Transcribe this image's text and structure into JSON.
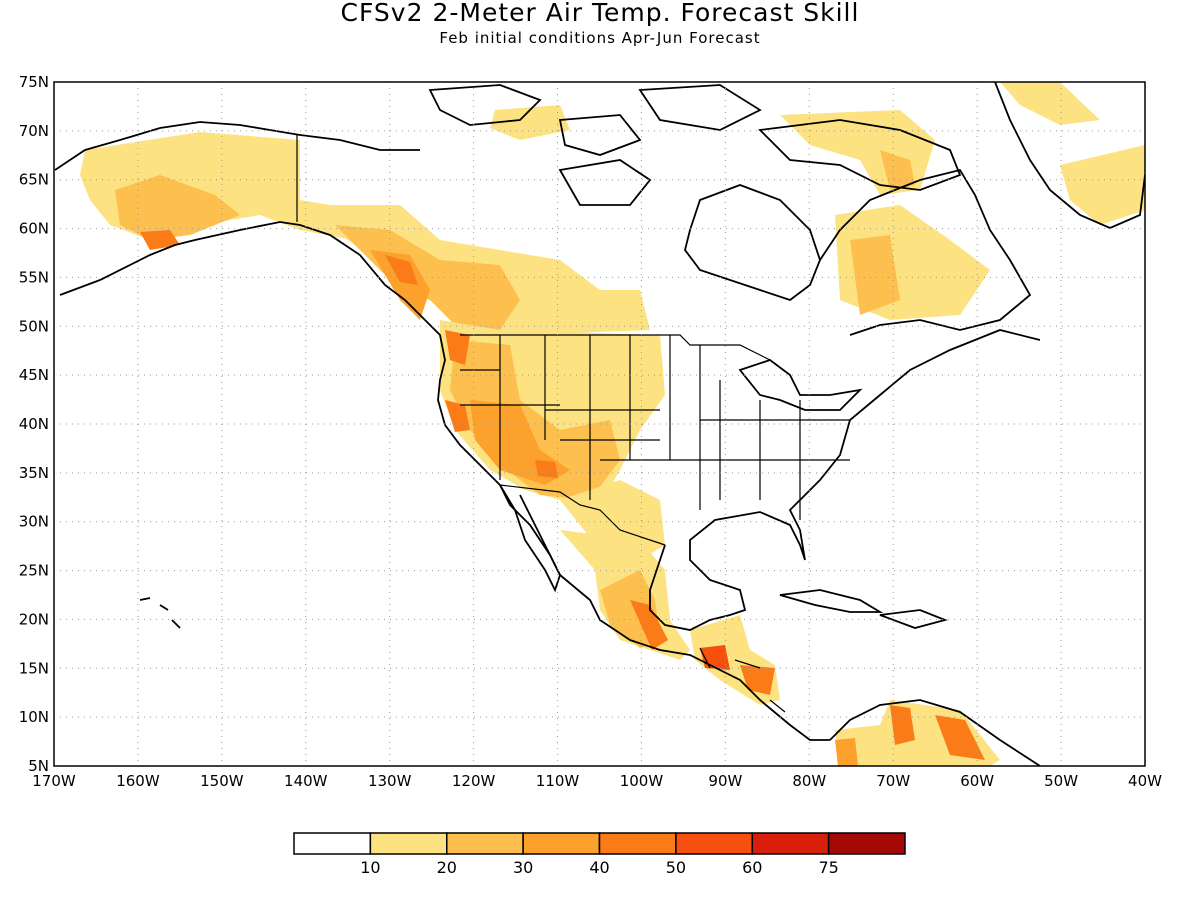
{
  "title": "CFSv2 2-Meter Air Temp. Forecast Skill",
  "subtitle": "Feb initial conditions  Apr-Jun Forecast",
  "map": {
    "lat_range": [
      5,
      75
    ],
    "lon_range": [
      -170,
      -40
    ],
    "lat_labels": [
      "5N",
      "10N",
      "15N",
      "20N",
      "25N",
      "30N",
      "35N",
      "40N",
      "45N",
      "50N",
      "55N",
      "60N",
      "65N",
      "70N",
      "75N"
    ],
    "lon_labels": [
      "170W",
      "160W",
      "150W",
      "140W",
      "130W",
      "120W",
      "110W",
      "100W",
      "90W",
      "80W",
      "70W",
      "60W",
      "50W",
      "40W"
    ],
    "grid": "dotted"
  },
  "colorbar": {
    "labels": [
      "10",
      "20",
      "30",
      "40",
      "50",
      "60",
      "75"
    ],
    "colors": [
      "#ffffff",
      "#fde282",
      "#fdc04e",
      "#fca12c",
      "#fa7b18",
      "#f5500f",
      "#d91f0b",
      "#a30a05"
    ]
  }
}
